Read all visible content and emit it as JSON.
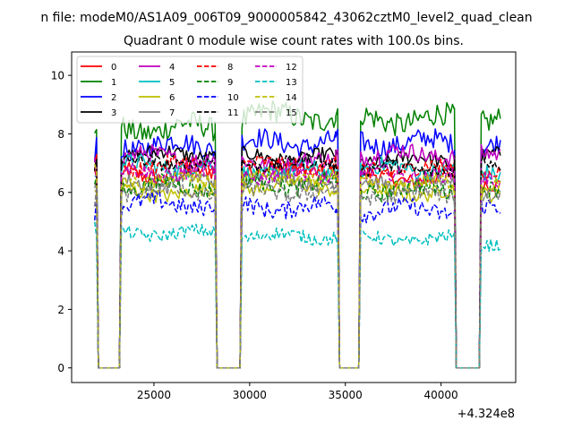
{
  "chart_data": {
    "type": "line",
    "suptitle": "n file: modeM0/AS1A09_006T09_9000005842_43062cztM0_level2_quad_clean",
    "title": "Quadrant 0 module wise count rates with 100.0s bins.",
    "xlabel": "",
    "ylabel": "",
    "x_offset_label": "+4.324e8",
    "xlim": [
      20700,
      43900
    ],
    "ylim": [
      -0.5,
      10.8
    ],
    "xticks": [
      25000,
      30000,
      35000,
      40000
    ],
    "xtick_labels": [
      "25000",
      "30000",
      "35000",
      "40000"
    ],
    "yticks": [
      0,
      2,
      4,
      6,
      8,
      10
    ],
    "ytick_labels": [
      "0",
      "2",
      "4",
      "6",
      "8",
      "10"
    ],
    "grid": false,
    "legend_position": "top-left",
    "legend_columns": 4,
    "segments": [
      {
        "x_start": 21900,
        "x_end": 28200,
        "gap_start": 22100,
        "gap_end": 23200
      },
      {
        "x_start": 28200,
        "x_end": 34500,
        "gap_start": 28300,
        "gap_end": 29500
      },
      {
        "x_start": 34500,
        "x_end": 40700,
        "gap_start": 34700,
        "gap_end": 35700
      },
      {
        "x_start": 40700,
        "x_end": 43100,
        "gap_start": 40800,
        "gap_end": 42000
      }
    ],
    "series": [
      {
        "name": "0",
        "color": "#ff0000",
        "dash": "solid",
        "levels": [
          6.6,
          6.8,
          6.5,
          6.4
        ],
        "noise": 0.28
      },
      {
        "name": "1",
        "color": "#008000",
        "dash": "solid",
        "levels": [
          8.2,
          8.6,
          8.5,
          8.6
        ],
        "noise": 0.4
      },
      {
        "name": "2",
        "color": "#0000ff",
        "dash": "solid",
        "levels": [
          7.6,
          7.7,
          7.7,
          7.6
        ],
        "noise": 0.35
      },
      {
        "name": "3",
        "color": "#000000",
        "dash": "solid",
        "levels": [
          7.3,
          7.2,
          7.1,
          7.2
        ],
        "noise": 0.25
      },
      {
        "name": "4",
        "color": "#bf00bf",
        "dash": "solid",
        "levels": [
          7.2,
          7.0,
          7.3,
          7.2
        ],
        "noise": 0.3
      },
      {
        "name": "5",
        "color": "#00bfbf",
        "dash": "solid",
        "levels": [
          6.9,
          6.7,
          6.8,
          6.6
        ],
        "noise": 0.3
      },
      {
        "name": "6",
        "color": "#bfbf00",
        "dash": "solid",
        "levels": [
          6.0,
          6.2,
          6.0,
          6.0
        ],
        "noise": 0.25
      },
      {
        "name": "7",
        "color": "#808080",
        "dash": "solid",
        "levels": [
          6.4,
          6.4,
          6.3,
          6.2
        ],
        "noise": 0.25
      },
      {
        "name": "8",
        "color": "#ff0000",
        "dash": "dashed",
        "levels": [
          6.9,
          6.9,
          6.8,
          6.7
        ],
        "noise": 0.28
      },
      {
        "name": "9",
        "color": "#008000",
        "dash": "dashed",
        "levels": [
          6.2,
          6.3,
          6.1,
          6.0
        ],
        "noise": 0.3
      },
      {
        "name": "10",
        "color": "#0000ff",
        "dash": "dashed",
        "levels": [
          5.6,
          5.5,
          5.4,
          5.4
        ],
        "noise": 0.3
      },
      {
        "name": "11",
        "color": "#000000",
        "dash": "dashed",
        "levels": [
          7.0,
          7.0,
          6.8,
          7.0
        ],
        "noise": 0.25
      },
      {
        "name": "12",
        "color": "#bf00bf",
        "dash": "dashed",
        "levels": [
          6.7,
          6.6,
          6.6,
          6.5
        ],
        "noise": 0.28
      },
      {
        "name": "13",
        "color": "#00bfbf",
        "dash": "dashed",
        "levels": [
          4.6,
          4.5,
          4.4,
          4.3
        ],
        "noise": 0.22
      },
      {
        "name": "14",
        "color": "#bfbf00",
        "dash": "dashed",
        "levels": [
          6.4,
          6.5,
          6.3,
          6.3
        ],
        "noise": 0.25
      },
      {
        "name": "15",
        "color": "#808080",
        "dash": "dashed",
        "levels": [
          6.0,
          6.0,
          5.9,
          5.8
        ],
        "noise": 0.25
      }
    ]
  }
}
